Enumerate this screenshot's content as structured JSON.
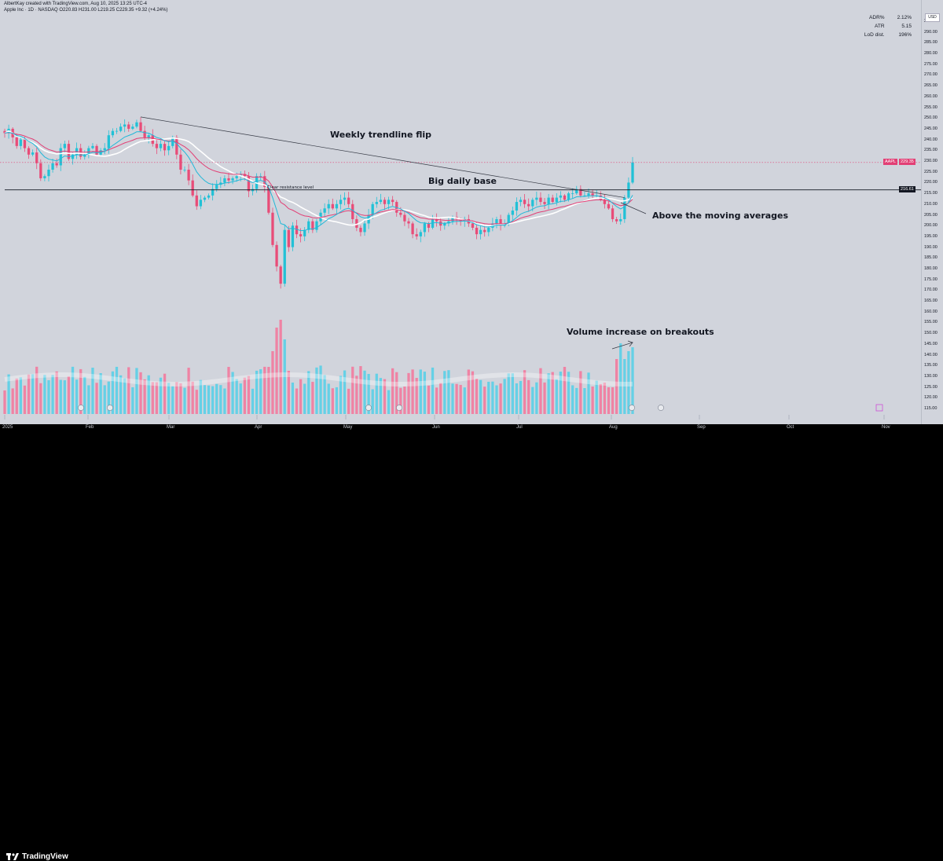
{
  "header": {
    "line1": "AlbertKay created with TradingView.com, Aug 10, 2025 13:25 UTC-4",
    "line2": "Apple Inc · 1D · NASDAQ  O220.83  H231.00  L219.25  C229.35  +9.32 (+4.24%)"
  },
  "info_table": [
    {
      "key": "ADR%",
      "value": "2.12%"
    },
    {
      "key": "ATR",
      "value": "5.15"
    },
    {
      "key": "LoD dist.",
      "value": "196%"
    }
  ],
  "currency": "USD",
  "colors": {
    "up": "#22c1d6",
    "down": "#e84c78",
    "vol_up": "#5fd0e6",
    "vol_down": "#f07ea0",
    "ema_fast": "#22b8d8",
    "ema_slow": "#e23f75",
    "sma": "#ffffff",
    "background": "#d1d4dc"
  },
  "price_labels": {
    "aapl_label": "AAPL",
    "last_price": "229.35",
    "resistance_price": "216.61"
  },
  "annotations": {
    "weekly_trendline": "Weekly trendline flip",
    "big_daily_base": "Big daily base",
    "clear_resistance": "Clear resistance level",
    "above_ma": "Above the moving averages",
    "volume_increase": "Volume increase on breakouts"
  },
  "branding": "TradingView",
  "chart_data": {
    "type": "candlestick",
    "symbol": "AAPL",
    "timeframe": "1D",
    "y_ticks": [
      115,
      120,
      125,
      130,
      135,
      140,
      145,
      150,
      155,
      160,
      165,
      170,
      175,
      180,
      185,
      190,
      195,
      200,
      205,
      210,
      215,
      220,
      225,
      230,
      235,
      240,
      245,
      250,
      255,
      260,
      265,
      270,
      275,
      280,
      285,
      290,
      295
    ],
    "ylim": [
      112,
      298
    ],
    "x_month_labels": [
      "2025",
      "Feb",
      "Mar",
      "Apr",
      "May",
      "Jun",
      "Jul",
      "Aug",
      "Sep",
      "Oct",
      "Nov"
    ],
    "closes": [
      243,
      245,
      241,
      237,
      240,
      236,
      233,
      234,
      229,
      222,
      223,
      226,
      229,
      228,
      236,
      238,
      231,
      233,
      236,
      232,
      233,
      236,
      237,
      233,
      235,
      236,
      242,
      244,
      244,
      246,
      247,
      245,
      246,
      248,
      244,
      241,
      242,
      238,
      236,
      238,
      235,
      237,
      241,
      233,
      226,
      226,
      221,
      214,
      209,
      212,
      213,
      214,
      217,
      219,
      220,
      222,
      221,
      222,
      223,
      224,
      223,
      216,
      217,
      223,
      223,
      218,
      206,
      191,
      181,
      173,
      198,
      190,
      200,
      196,
      195,
      198,
      202,
      198,
      202,
      206,
      208,
      210,
      208,
      210,
      212,
      213,
      210,
      203,
      199,
      197,
      201,
      205,
      210,
      211,
      212,
      210,
      212,
      211,
      206,
      205,
      202,
      201,
      196,
      195,
      197,
      201,
      199,
      203,
      202,
      200,
      201,
      202,
      204,
      203,
      202,
      203,
      201,
      199,
      196,
      198,
      197,
      199,
      201,
      203,
      200,
      201,
      205,
      207,
      211,
      212,
      210,
      209,
      212,
      213,
      211,
      210,
      213,
      211,
      213,
      214,
      212,
      215,
      215,
      217,
      214,
      214,
      215,
      214,
      214,
      212,
      210,
      208,
      203,
      202,
      203,
      213,
      220,
      229.35
    ],
    "trendline": {
      "from": {
        "date": "2025-02-24",
        "price": 250.5
      },
      "to": {
        "date": "2025-08-06",
        "price": 213
      }
    },
    "resistance_level": 216.61,
    "volume_increase_arrow": "rising"
  }
}
